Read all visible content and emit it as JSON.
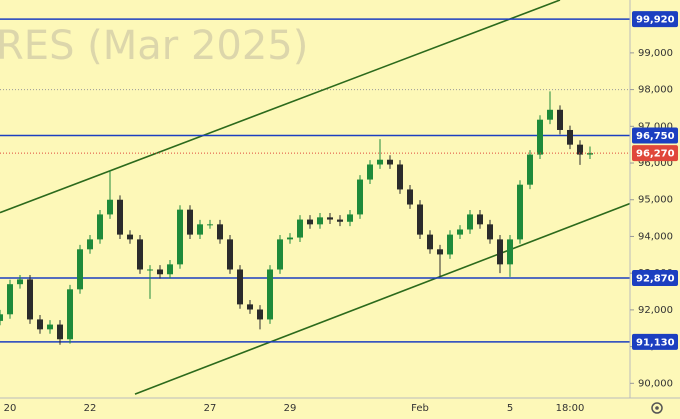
{
  "chart_data": {
    "type": "candlestick",
    "watermark": "RES (Mar 2025)",
    "categories": [
      null,
      "20",
      null,
      null,
      null,
      null,
      null,
      null,
      null,
      "22",
      null,
      null,
      null,
      null,
      null,
      null,
      null,
      null,
      null,
      null,
      null,
      "27",
      null,
      null,
      null,
      null,
      null,
      null,
      null,
      "29",
      null,
      null,
      null,
      null,
      null,
      null,
      null,
      null,
      null,
      null,
      null,
      null,
      "Feb",
      null,
      null,
      null,
      null,
      null,
      null,
      null,
      null,
      "5",
      null,
      null,
      null,
      null,
      null,
      "18:00",
      null,
      null
    ],
    "open": [
      91700,
      91880,
      92700,
      92830,
      91740,
      91470,
      91600,
      91200,
      92560,
      93650,
      93920,
      94600,
      95000,
      94050,
      93920,
      93100,
      93100,
      92970,
      93240,
      94730,
      94050,
      94330,
      94330,
      93920,
      93100,
      92150,
      92010,
      91740,
      93100,
      93920,
      93970,
      94460,
      94330,
      94520,
      94460,
      94400,
      94600,
      95550,
      95960,
      96090,
      95960,
      95280,
      94870,
      94050,
      93650,
      93510,
      94050,
      94190,
      94600,
      94330,
      93920,
      93240,
      93920,
      95410,
      96230,
      97180,
      97450,
      96900,
      96500,
      96230
    ],
    "high": [
      92000,
      92820,
      92950,
      92950,
      91860,
      91720,
      91720,
      92680,
      93770,
      94040,
      94720,
      95800,
      95120,
      94170,
      94040,
      93220,
      93220,
      93360,
      94850,
      94850,
      94450,
      94450,
      94450,
      94040,
      93220,
      92270,
      92130,
      93220,
      94040,
      94090,
      94580,
      94580,
      94640,
      94640,
      94580,
      94720,
      95670,
      96080,
      96650,
      96210,
      96080,
      95400,
      94990,
      94170,
      93770,
      94170,
      94310,
      94720,
      94720,
      94450,
      94040,
      94040,
      95530,
      96350,
      97300,
      97950,
      97570,
      97020,
      96620,
      96450
    ],
    "low": [
      91580,
      91760,
      92580,
      91620,
      91350,
      91350,
      91050,
      91080,
      92440,
      93530,
      93800,
      94480,
      93930,
      93800,
      92980,
      92300,
      92850,
      92850,
      93120,
      93930,
      93930,
      94210,
      93800,
      92980,
      92030,
      91890,
      91470,
      91620,
      92980,
      93800,
      93850,
      94210,
      94210,
      94340,
      94280,
      94280,
      94480,
      95430,
      95840,
      95840,
      95160,
      94750,
      93930,
      93530,
      92900,
      93390,
      93930,
      94070,
      94210,
      93800,
      93000,
      92900,
      93800,
      95290,
      96110,
      97060,
      96780,
      96380,
      95950,
      96110
    ],
    "close": [
      91880,
      92700,
      92830,
      91740,
      91470,
      91600,
      91200,
      92560,
      93650,
      93920,
      94600,
      95000,
      94050,
      93920,
      93100,
      93100,
      92970,
      93240,
      94730,
      94050,
      94330,
      94330,
      93920,
      93100,
      92150,
      92010,
      91740,
      93100,
      93920,
      93970,
      94460,
      94330,
      94520,
      94460,
      94400,
      94600,
      95550,
      95960,
      96090,
      95960,
      95280,
      94870,
      94050,
      93650,
      93510,
      94050,
      94190,
      94600,
      94330,
      93920,
      93240,
      93920,
      95410,
      96230,
      97180,
      97450,
      96900,
      96500,
      96230,
      96270
    ],
    "up_color": "#1f8a3a",
    "down_color": "#2b2b2b",
    "xlim": [
      0,
      63
    ],
    "ylim": [
      89600,
      100440
    ],
    "yticks": [
      {
        "value": 90000,
        "label": "90,000"
      },
      {
        "value": 91000,
        "label": "91,000"
      },
      {
        "value": 92000,
        "label": "92,000"
      },
      {
        "value": 93000,
        "label": "93,000"
      },
      {
        "value": 94000,
        "label": "94,000"
      },
      {
        "value": 95000,
        "label": "95,000"
      },
      {
        "value": 96000,
        "label": "96,000"
      },
      {
        "value": 97000,
        "label": "97,000"
      },
      {
        "value": 98000,
        "label": "98,000"
      },
      {
        "value": 99000,
        "label": "99,000"
      }
    ],
    "levels": [
      {
        "value": 99920,
        "label": "99,920"
      },
      {
        "value": 96750,
        "label": "96,750"
      },
      {
        "value": 92870,
        "label": "92,870"
      },
      {
        "value": 91130,
        "label": "91,130"
      }
    ],
    "level_color": "#1c3fc0",
    "dotted_level": 98000,
    "last_price": {
      "value": 96270,
      "label": "96,270"
    },
    "last_color": "#e0473a",
    "trend_lines": [
      [
        [
          0,
          94650
        ],
        [
          56,
          100440
        ]
      ],
      [
        [
          13.5,
          89707
        ],
        [
          63,
          94897
        ]
      ]
    ],
    "trend_color": "#2c6a1c"
  }
}
